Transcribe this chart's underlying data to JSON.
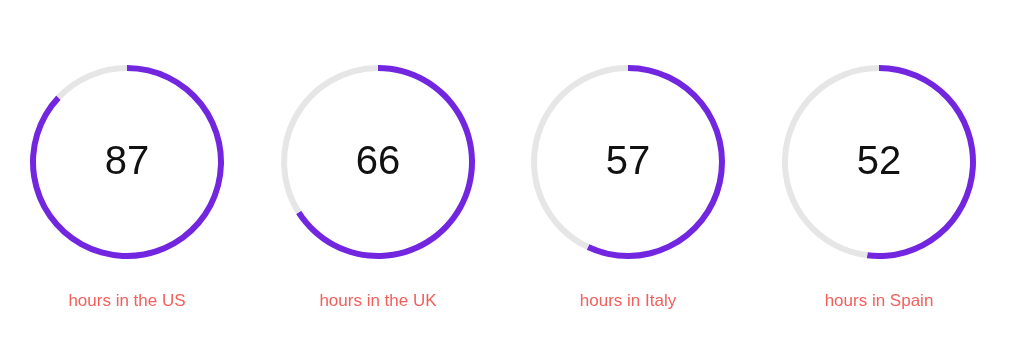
{
  "chart_data": [
    {
      "type": "donut",
      "title": "hours in the US",
      "annotations": [
        "87"
      ],
      "categories": [
        null,
        null
      ],
      "values": [
        87,
        13
      ],
      "colors": [
        "#7326e0",
        "#e6e6e6"
      ]
    },
    {
      "type": "donut",
      "title": "hours in the UK",
      "annotations": [
        "66"
      ],
      "categories": [
        null,
        null
      ],
      "values": [
        66,
        34
      ],
      "colors": [
        "#7326e0",
        "#e6e6e6"
      ]
    },
    {
      "type": "donut",
      "title": "hours in Italy",
      "annotations": [
        "57"
      ],
      "categories": [
        null,
        null
      ],
      "values": [
        57,
        43
      ],
      "colors": [
        "#7326e0",
        "#e6e6e6"
      ]
    },
    {
      "type": "donut",
      "title": "hours in Spain",
      "annotations": [
        "52"
      ],
      "categories": [
        null,
        null
      ],
      "values": [
        52,
        48
      ],
      "colors": [
        "#7326e0",
        "#e6e6e6"
      ]
    }
  ]
}
